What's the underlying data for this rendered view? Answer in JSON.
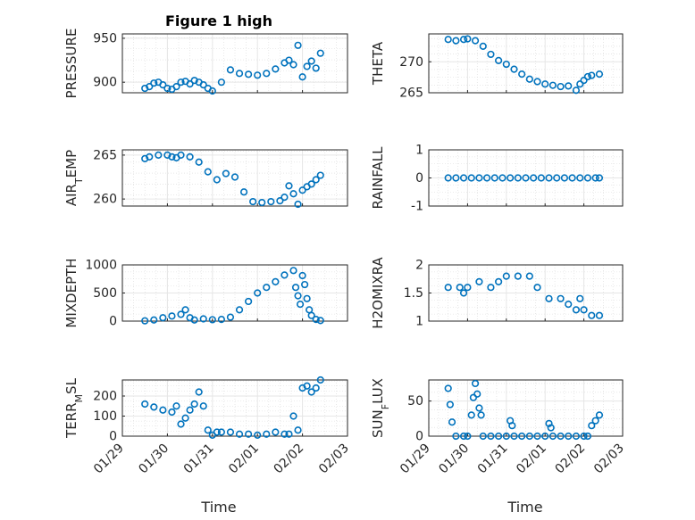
{
  "figure": {
    "title": "Figure 1 high",
    "marker_color": "#0072bd",
    "xlabel": "Time"
  },
  "x_tick_labels": [
    "01/29",
    "01/30",
    "01/31",
    "02/01",
    "02/02",
    "02/03"
  ],
  "chart_data": [
    {
      "type": "scatter",
      "title": "Figure 1 high",
      "ylabel": "PRESSURE",
      "xlim": [
        "01/29",
        "02/03"
      ],
      "ylim": [
        888,
        955
      ],
      "yticks": [
        900,
        950
      ],
      "grid": true,
      "series": [
        {
          "x": [
            29.5,
            29.6,
            29.7,
            29.8,
            29.9,
            30.0,
            30.1,
            30.2,
            30.3,
            30.4,
            30.5,
            30.6,
            30.7,
            30.8,
            30.9,
            31.0,
            31.2,
            31.4,
            31.6,
            31.8,
            32.0,
            32.2,
            32.4,
            32.6,
            32.7,
            32.8,
            32.9,
            33.0,
            33.1,
            33.2,
            33.3,
            33.4
          ],
          "y": [
            893,
            895,
            899,
            900,
            897,
            893,
            892,
            895,
            900,
            901,
            898,
            902,
            900,
            897,
            893,
            890,
            900,
            914,
            910,
            909,
            908,
            910,
            915,
            922,
            925,
            920,
            942,
            906,
            918,
            924,
            916,
            933
          ]
        }
      ]
    },
    {
      "type": "scatter",
      "ylabel": "THETA",
      "xlim": [
        "01/29",
        "02/03"
      ],
      "ylim": [
        265,
        274.5
      ],
      "yticks": [
        265,
        270
      ],
      "grid": true,
      "series": [
        {
          "x": [
            29.5,
            29.7,
            29.9,
            30.0,
            30.2,
            30.4,
            30.6,
            30.8,
            31.0,
            31.2,
            31.4,
            31.6,
            31.8,
            32.0,
            32.2,
            32.4,
            32.6,
            32.8,
            32.9,
            33.0,
            33.1,
            33.2,
            33.4
          ],
          "y": [
            273.6,
            273.4,
            273.6,
            273.7,
            273.4,
            272.5,
            271.2,
            270.2,
            269.6,
            268.8,
            268.0,
            267.2,
            266.8,
            266.4,
            266.2,
            266.0,
            266.1,
            265.4,
            266.4,
            267.0,
            267.6,
            267.8,
            268.0
          ]
        }
      ]
    },
    {
      "type": "scatter",
      "ylabel": "AIR_TEMP",
      "xlim": [
        "01/29",
        "02/03"
      ],
      "ylim": [
        259.2,
        265.6
      ],
      "yticks": [
        260,
        265
      ],
      "grid": true,
      "series": [
        {
          "x": [
            29.5,
            29.6,
            29.8,
            30.0,
            30.1,
            30.2,
            30.3,
            30.5,
            30.7,
            30.9,
            31.1,
            31.3,
            31.5,
            31.7,
            31.9,
            32.1,
            32.3,
            32.5,
            32.6,
            32.7,
            32.8,
            32.9,
            33.0,
            33.1,
            33.2,
            33.3,
            33.4
          ],
          "y": [
            264.6,
            264.8,
            265.0,
            265.0,
            264.8,
            264.7,
            265.0,
            264.8,
            264.2,
            263.1,
            262.2,
            262.9,
            262.5,
            260.8,
            259.7,
            259.6,
            259.7,
            259.8,
            260.2,
            261.5,
            260.6,
            259.4,
            261.0,
            261.4,
            261.7,
            262.2,
            262.7
          ]
        }
      ]
    },
    {
      "type": "scatter",
      "ylabel": "RAINFALL",
      "xlim": [
        "01/29",
        "02/03"
      ],
      "ylim": [
        -1,
        1
      ],
      "yticks": [
        -1,
        0,
        1
      ],
      "grid": true,
      "series": [
        {
          "x": [
            29.5,
            29.7,
            29.9,
            30.1,
            30.3,
            30.5,
            30.7,
            30.9,
            31.1,
            31.3,
            31.5,
            31.7,
            31.9,
            32.1,
            32.3,
            32.5,
            32.7,
            32.9,
            33.1,
            33.3,
            33.4
          ],
          "y": [
            0,
            0,
            0,
            0,
            0,
            0,
            0,
            0,
            0,
            0,
            0,
            0,
            0,
            0,
            0,
            0,
            0,
            0,
            0,
            0,
            0
          ]
        }
      ]
    },
    {
      "type": "scatter",
      "ylabel": "MIXDEPTH",
      "xlim": [
        "01/29",
        "02/03"
      ],
      "ylim": [
        0,
        1000
      ],
      "yticks": [
        0,
        500,
        1000
      ],
      "grid": true,
      "series": [
        {
          "x": [
            29.5,
            29.7,
            29.9,
            30.1,
            30.3,
            30.4,
            30.5,
            30.6,
            30.8,
            31.0,
            31.2,
            31.4,
            31.6,
            31.8,
            32.0,
            32.2,
            32.4,
            32.6,
            32.8,
            32.85,
            32.9,
            32.95,
            33.0,
            33.05,
            33.1,
            33.15,
            33.2,
            33.3,
            33.4
          ],
          "y": [
            5,
            20,
            60,
            90,
            120,
            200,
            60,
            20,
            40,
            25,
            30,
            70,
            200,
            350,
            500,
            600,
            700,
            820,
            900,
            600,
            450,
            300,
            810,
            650,
            400,
            200,
            100,
            30,
            10
          ]
        }
      ]
    },
    {
      "type": "scatter",
      "ylabel": "H2OMIXRA",
      "xlim": [
        "01/29",
        "02/03"
      ],
      "ylim": [
        1,
        2
      ],
      "yticks": [
        1,
        1.5,
        2
      ],
      "grid": true,
      "series": [
        {
          "x": [
            29.5,
            29.8,
            29.9,
            30.0,
            30.3,
            30.6,
            30.8,
            31.0,
            31.3,
            31.6,
            31.8,
            32.1,
            32.4,
            32.6,
            32.8,
            32.9,
            33.0,
            33.2,
            33.4
          ],
          "y": [
            1.6,
            1.6,
            1.5,
            1.6,
            1.7,
            1.6,
            1.7,
            1.8,
            1.8,
            1.8,
            1.6,
            1.4,
            1.4,
            1.3,
            1.2,
            1.4,
            1.2,
            1.1,
            1.1
          ]
        }
      ]
    },
    {
      "type": "scatter",
      "ylabel": "TERR_MSL",
      "xlim": [
        "01/29",
        "02/03"
      ],
      "ylim": [
        0,
        280
      ],
      "yticks": [
        0,
        100,
        200
      ],
      "grid": true,
      "series": [
        {
          "x": [
            29.5,
            29.7,
            29.9,
            30.1,
            30.2,
            30.3,
            30.4,
            30.5,
            30.6,
            30.7,
            30.8,
            30.9,
            31.0,
            31.1,
            31.2,
            31.4,
            31.6,
            31.8,
            32.0,
            32.2,
            32.4,
            32.6,
            32.7,
            32.8,
            32.9,
            33.0,
            33.1,
            33.2,
            33.3,
            33.4
          ],
          "y": [
            160,
            145,
            130,
            120,
            150,
            60,
            90,
            130,
            160,
            220,
            150,
            30,
            5,
            20,
            20,
            20,
            10,
            10,
            5,
            10,
            20,
            10,
            10,
            100,
            30,
            240,
            250,
            220,
            240,
            280
          ]
        }
      ]
    },
    {
      "type": "scatter",
      "ylabel": "SUN_FLUX",
      "xlim": [
        "01/29",
        "02/03"
      ],
      "ylim": [
        0,
        80
      ],
      "yticks": [
        0,
        50
      ],
      "grid": true,
      "series": [
        {
          "x": [
            29.5,
            29.55,
            29.6,
            29.7,
            29.9,
            30.0,
            30.1,
            30.15,
            30.2,
            30.25,
            30.3,
            30.35,
            30.4,
            30.6,
            30.8,
            31.0,
            31.1,
            31.15,
            31.2,
            31.4,
            31.6,
            31.8,
            32.0,
            32.1,
            32.15,
            32.2,
            32.4,
            32.6,
            32.8,
            33.0,
            33.1,
            33.2,
            33.3,
            33.4
          ],
          "y": [
            68,
            45,
            20,
            0,
            0,
            0,
            30,
            55,
            75,
            60,
            40,
            30,
            0,
            0,
            0,
            0,
            22,
            15,
            0,
            0,
            0,
            0,
            0,
            18,
            12,
            0,
            0,
            0,
            0,
            0,
            0,
            15,
            22,
            30
          ]
        }
      ]
    }
  ]
}
